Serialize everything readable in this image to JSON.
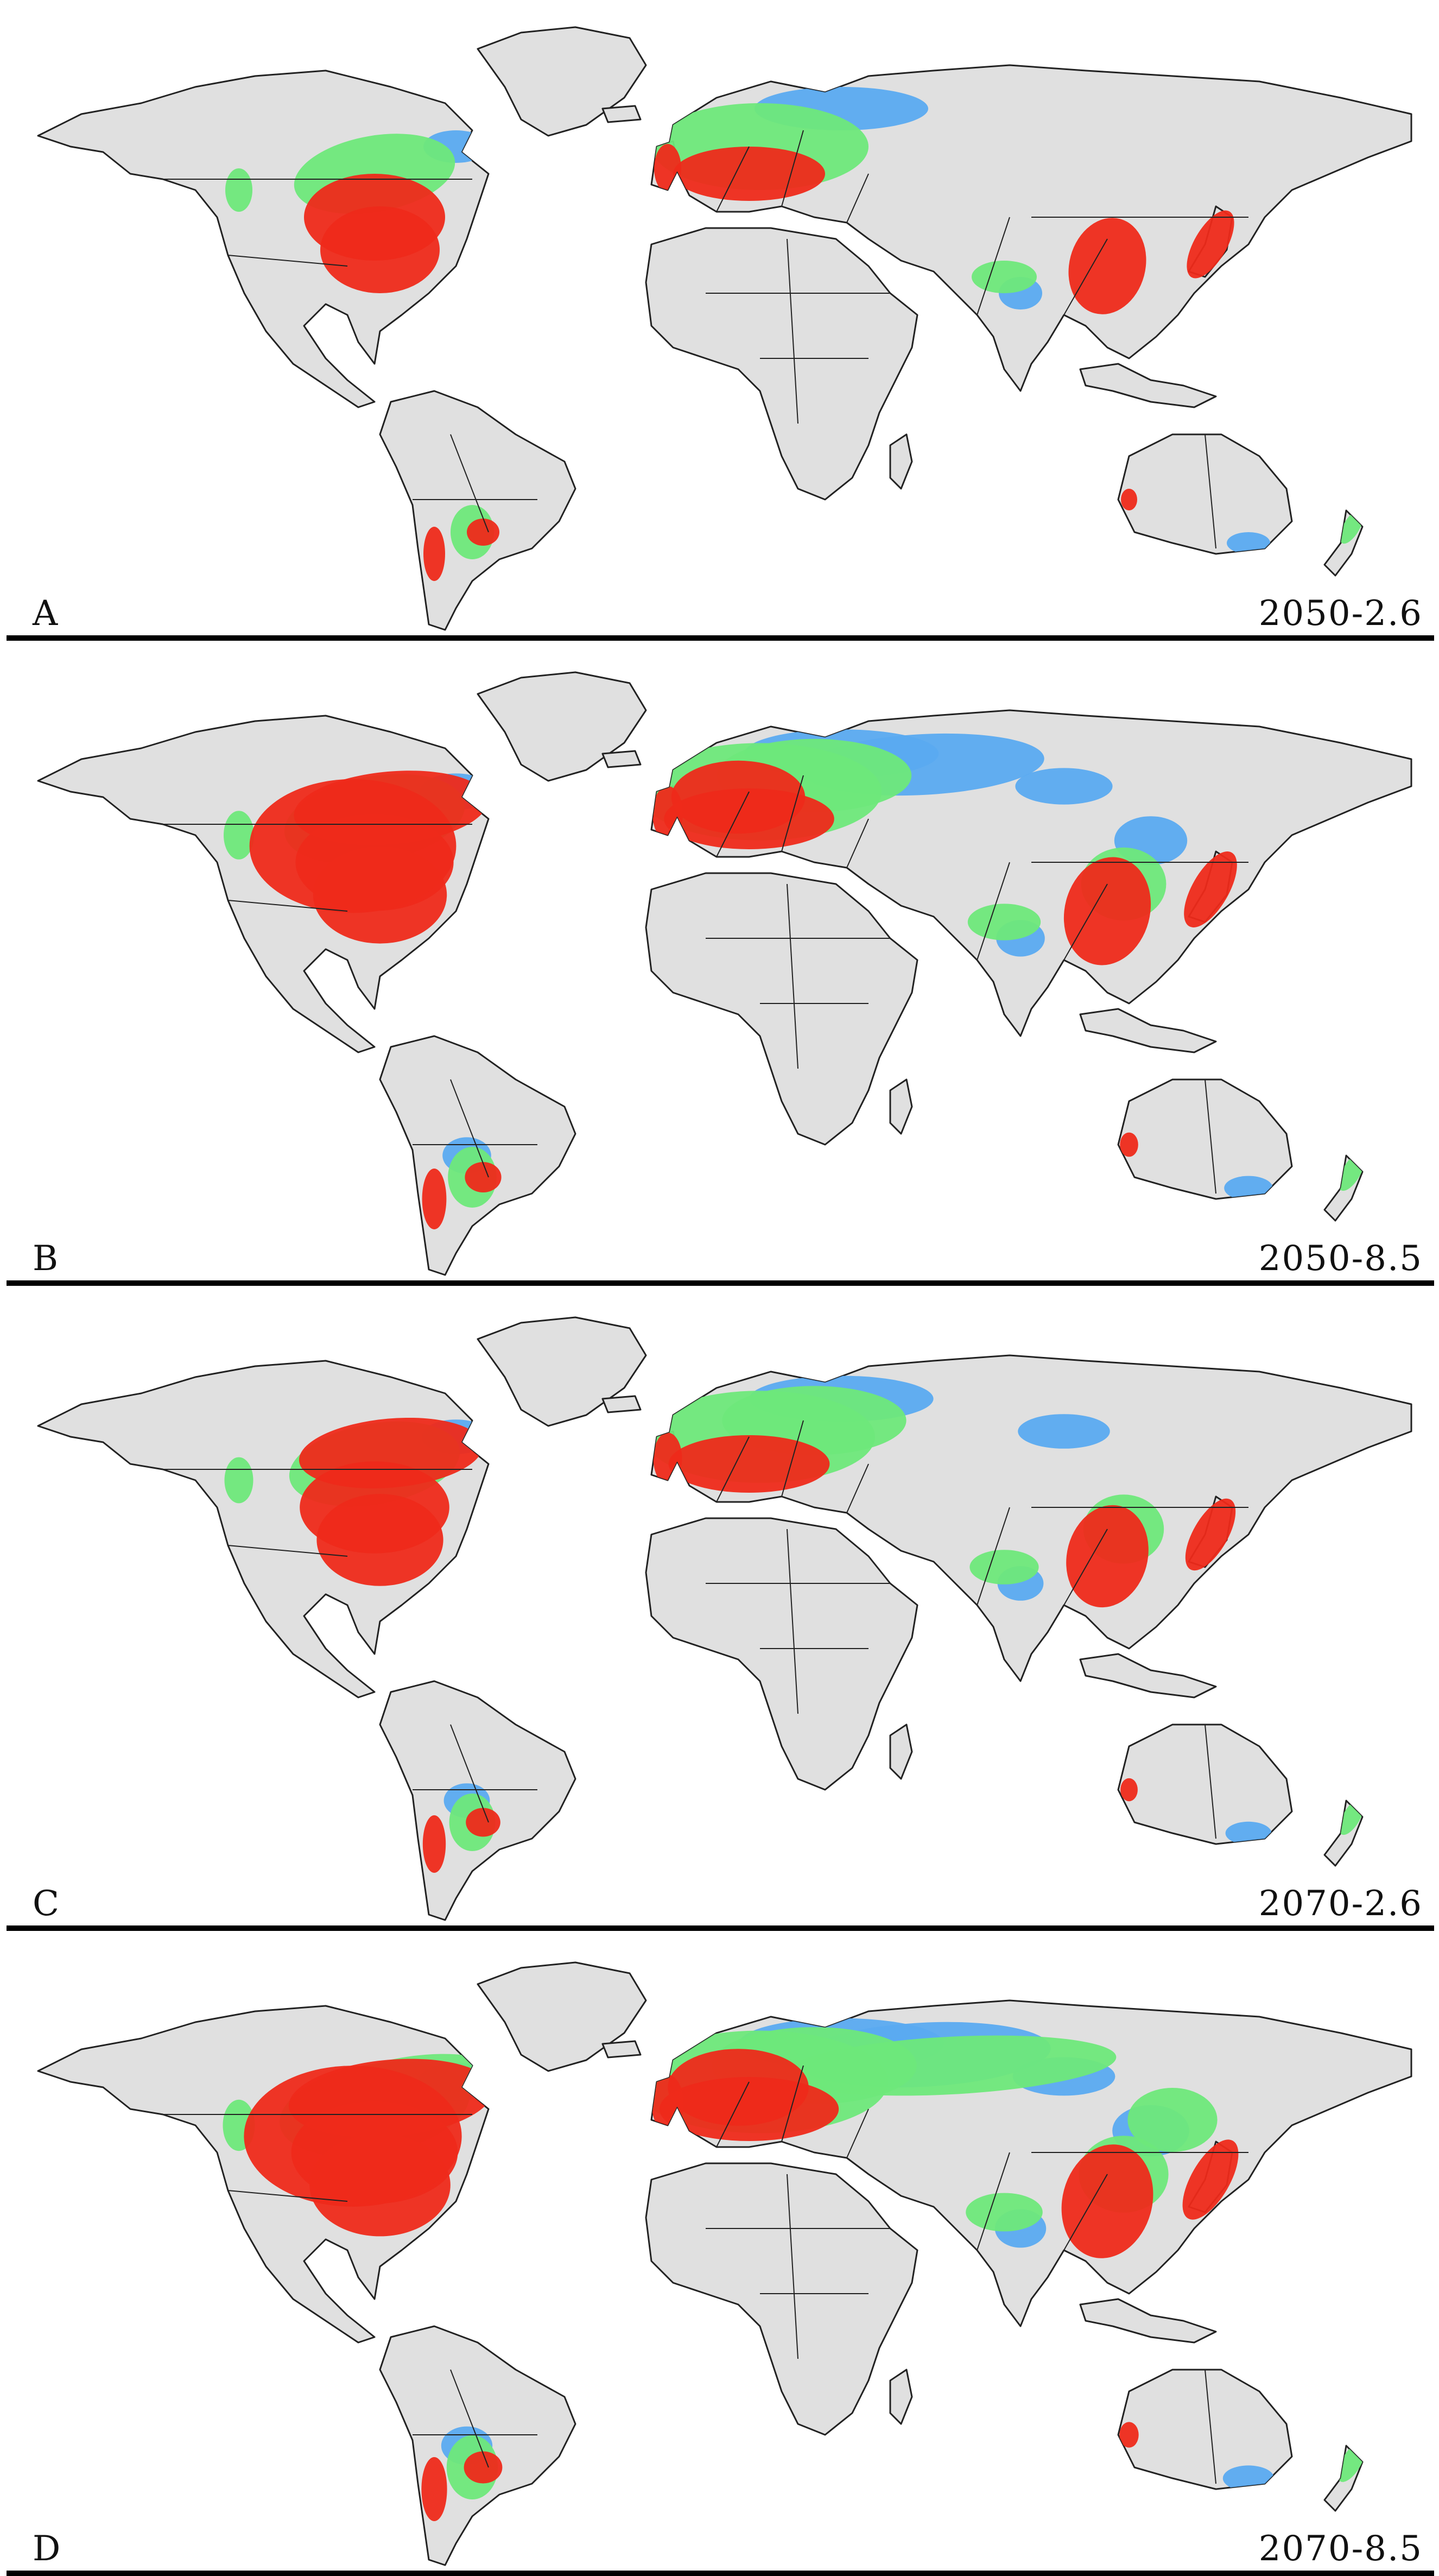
{
  "colors": {
    "land": "#e0e0e0",
    "border": "#222222",
    "low": "#5aaaf0",
    "moderate": "#6ee87a",
    "high": "#ee2a1a",
    "rule": "#000000"
  },
  "panels": [
    {
      "letter": "A",
      "scenario": "2050-2.6",
      "level": 0
    },
    {
      "letter": "B",
      "scenario": "2050-8.5",
      "level": 2
    },
    {
      "letter": "C",
      "scenario": "2070-2.6",
      "level": 1
    },
    {
      "letter": "D",
      "scenario": "2070-8.5",
      "level": 3
    }
  ]
}
